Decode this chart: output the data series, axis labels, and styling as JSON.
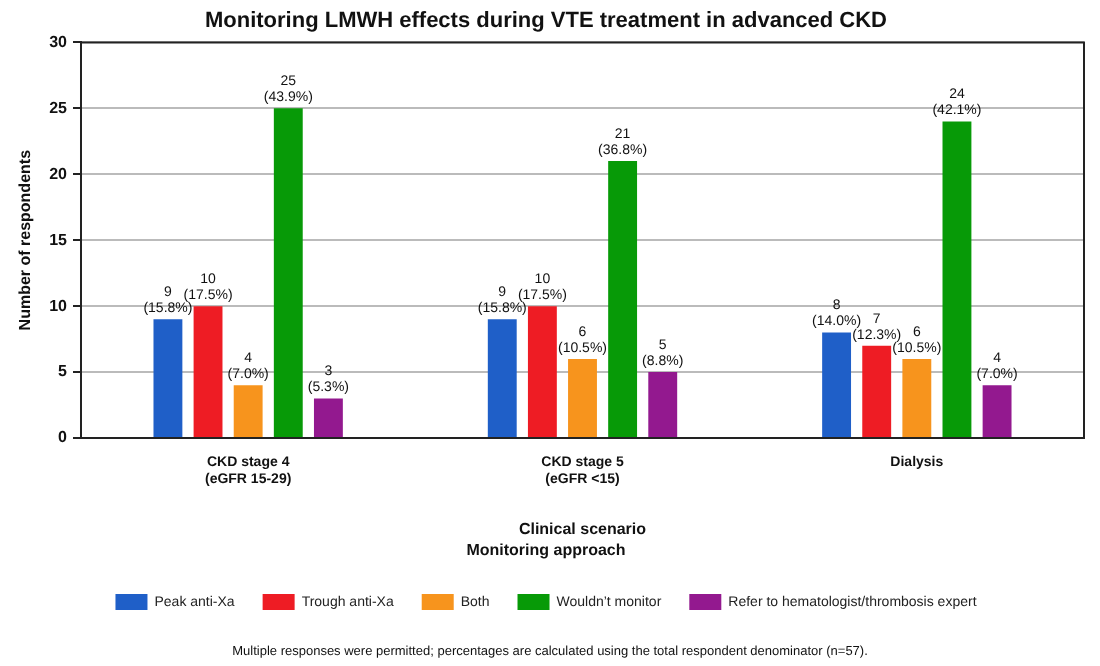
{
  "chart_data": {
    "type": "bar",
    "title": "Monitoring LMWH effects during VTE treatment in advanced CKD",
    "xlabel": "Clinical scenario",
    "ylabel": "Number of respondents",
    "legend_title": "Monitoring approach",
    "legend": "bottom",
    "grid": "y",
    "categories": [
      "CKD stage 4 (eGFR 15-29)",
      "CKD stage 5 (eGFR <15)",
      "Dialysis"
    ],
    "ylim": [
      0,
      30
    ],
    "yticks": [
      0,
      5,
      10,
      15,
      20,
      25,
      30
    ],
    "series": [
      {
        "name": "Peak anti-Xa",
        "color": "#1f5fc8",
        "values": [
          9,
          9,
          8
        ],
        "value_labels": [
          "9 (15.8%)",
          "9 (15.8%)",
          "8 (14.0%)"
        ]
      },
      {
        "name": "Trough anti-Xa",
        "color": "#ee1c24",
        "values": [
          10,
          10,
          7
        ],
        "value_labels": [
          "10 (17.5%)",
          "10 (17.5%)",
          "7 (12.3%)"
        ]
      },
      {
        "name": "Both",
        "color": "#f7941d",
        "values": [
          4,
          6,
          6
        ],
        "value_labels": [
          "4 (7.0%)",
          "6 (10.5%)",
          "6 (10.5%)"
        ]
      },
      {
        "name": "Wouldn’t monitor",
        "color": "#079a07",
        "values": [
          25,
          21,
          24
        ],
        "value_labels": [
          "25 (43.9%)",
          "21 (36.8%)",
          "24 (42.1%)"
        ]
      },
      {
        "name": "Refer to hematologist/thrombosis expert",
        "color": "#93198f",
        "values": [
          3,
          5,
          4
        ],
        "value_labels": [
          "3 (5.3%)",
          "5 (8.8%)",
          "4 (7.0%)"
        ]
      }
    ],
    "annotations": [
      "Multiple responses were permitted; percentages are calculated using the total respondent denominator (n=57)."
    ]
  }
}
